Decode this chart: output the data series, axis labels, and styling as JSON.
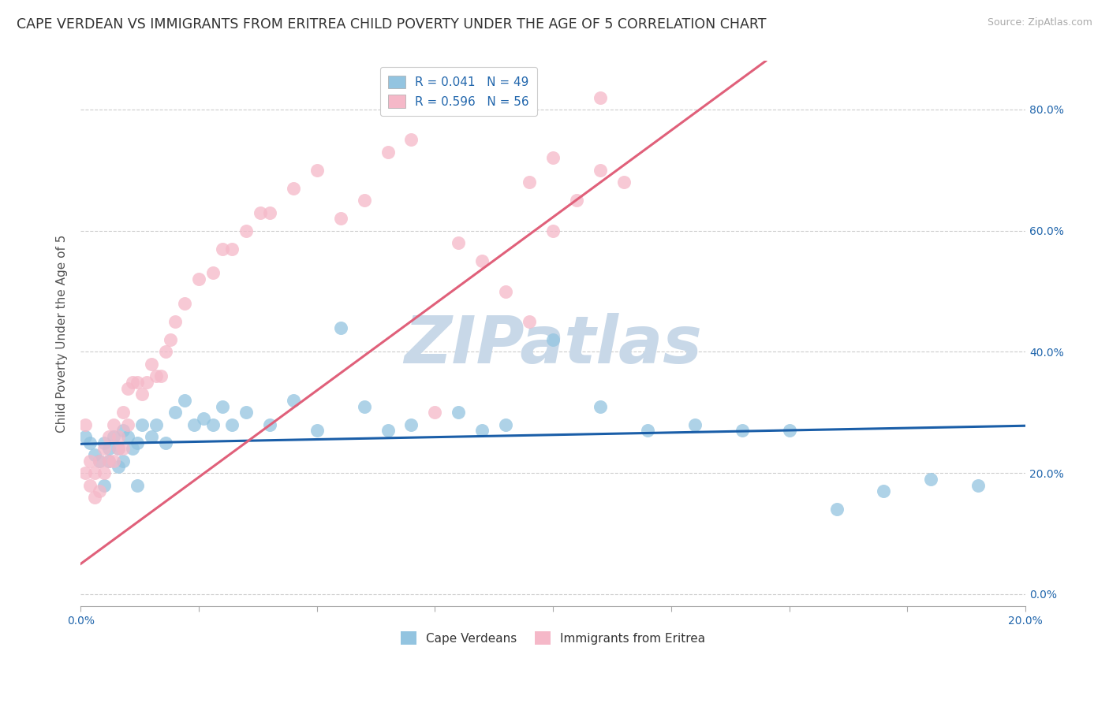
{
  "title": "CAPE VERDEAN VS IMMIGRANTS FROM ERITREA CHILD POVERTY UNDER THE AGE OF 5 CORRELATION CHART",
  "source": "Source: ZipAtlas.com",
  "ylabel": "Child Poverty Under the Age of 5",
  "xlim": [
    0.0,
    0.2
  ],
  "ylim": [
    -0.02,
    0.88
  ],
  "yticks": [
    0.0,
    0.2,
    0.4,
    0.6,
    0.8
  ],
  "ytick_labels": [
    "0.0%",
    "20.0%",
    "40.0%",
    "60.0%",
    "80.0%"
  ],
  "xticks": [
    0.0,
    0.025,
    0.05,
    0.075,
    0.1,
    0.125,
    0.15,
    0.175,
    0.2
  ],
  "legend_r1": "R = 0.041",
  "legend_n1": "N = 49",
  "legend_r2": "R = 0.596",
  "legend_n2": "N = 56",
  "color_blue": "#93c4e0",
  "color_pink": "#f5b8c8",
  "color_blue_line": "#1a5ea8",
  "color_pink_line": "#e0607a",
  "watermark": "ZIPatlas",
  "label_blue": "Cape Verdeans",
  "label_pink": "Immigrants from Eritrea",
  "blue_points_x": [
    0.001,
    0.002,
    0.003,
    0.004,
    0.005,
    0.006,
    0.006,
    0.007,
    0.008,
    0.009,
    0.009,
    0.01,
    0.011,
    0.012,
    0.013,
    0.015,
    0.016,
    0.018,
    0.02,
    0.022,
    0.024,
    0.026,
    0.028,
    0.03,
    0.032,
    0.035,
    0.04,
    0.045,
    0.05,
    0.055,
    0.06,
    0.065,
    0.07,
    0.08,
    0.085,
    0.09,
    0.1,
    0.11,
    0.12,
    0.13,
    0.14,
    0.15,
    0.16,
    0.17,
    0.18,
    0.19,
    0.005,
    0.008,
    0.012
  ],
  "blue_points_y": [
    0.26,
    0.25,
    0.23,
    0.22,
    0.25,
    0.24,
    0.22,
    0.26,
    0.24,
    0.27,
    0.22,
    0.26,
    0.24,
    0.25,
    0.28,
    0.26,
    0.28,
    0.25,
    0.3,
    0.32,
    0.28,
    0.29,
    0.28,
    0.31,
    0.28,
    0.3,
    0.28,
    0.32,
    0.27,
    0.44,
    0.31,
    0.27,
    0.28,
    0.3,
    0.27,
    0.28,
    0.42,
    0.31,
    0.27,
    0.28,
    0.27,
    0.27,
    0.14,
    0.17,
    0.19,
    0.18,
    0.18,
    0.21,
    0.18
  ],
  "pink_points_x": [
    0.001,
    0.001,
    0.002,
    0.002,
    0.003,
    0.003,
    0.004,
    0.004,
    0.005,
    0.005,
    0.006,
    0.006,
    0.007,
    0.007,
    0.008,
    0.008,
    0.009,
    0.009,
    0.01,
    0.01,
    0.011,
    0.012,
    0.013,
    0.014,
    0.015,
    0.016,
    0.017,
    0.018,
    0.019,
    0.02,
    0.022,
    0.025,
    0.028,
    0.03,
    0.032,
    0.035,
    0.038,
    0.04,
    0.045,
    0.05,
    0.055,
    0.06,
    0.065,
    0.07,
    0.075,
    0.08,
    0.085,
    0.09,
    0.095,
    0.1,
    0.105,
    0.11,
    0.115,
    0.11,
    0.1,
    0.095
  ],
  "pink_points_y": [
    0.28,
    0.2,
    0.22,
    0.18,
    0.2,
    0.16,
    0.22,
    0.17,
    0.24,
    0.2,
    0.26,
    0.22,
    0.28,
    0.22,
    0.26,
    0.24,
    0.3,
    0.24,
    0.34,
    0.28,
    0.35,
    0.35,
    0.33,
    0.35,
    0.38,
    0.36,
    0.36,
    0.4,
    0.42,
    0.45,
    0.48,
    0.52,
    0.53,
    0.57,
    0.57,
    0.6,
    0.63,
    0.63,
    0.67,
    0.7,
    0.62,
    0.65,
    0.73,
    0.75,
    0.3,
    0.58,
    0.55,
    0.5,
    0.45,
    0.72,
    0.65,
    0.82,
    0.68,
    0.7,
    0.6,
    0.68
  ],
  "blue_trend_x": [
    0.0,
    0.2
  ],
  "blue_trend_y": [
    0.248,
    0.278
  ],
  "pink_trend_x": [
    0.0,
    0.145
  ],
  "pink_trend_y": [
    0.05,
    0.88
  ],
  "grid_color": "#cccccc",
  "title_fontsize": 12.5,
  "axis_label_fontsize": 11,
  "tick_fontsize": 10,
  "legend_fontsize": 11,
  "watermark_fontsize": 60,
  "watermark_color": "#c8d8e8",
  "background_color": "#ffffff"
}
